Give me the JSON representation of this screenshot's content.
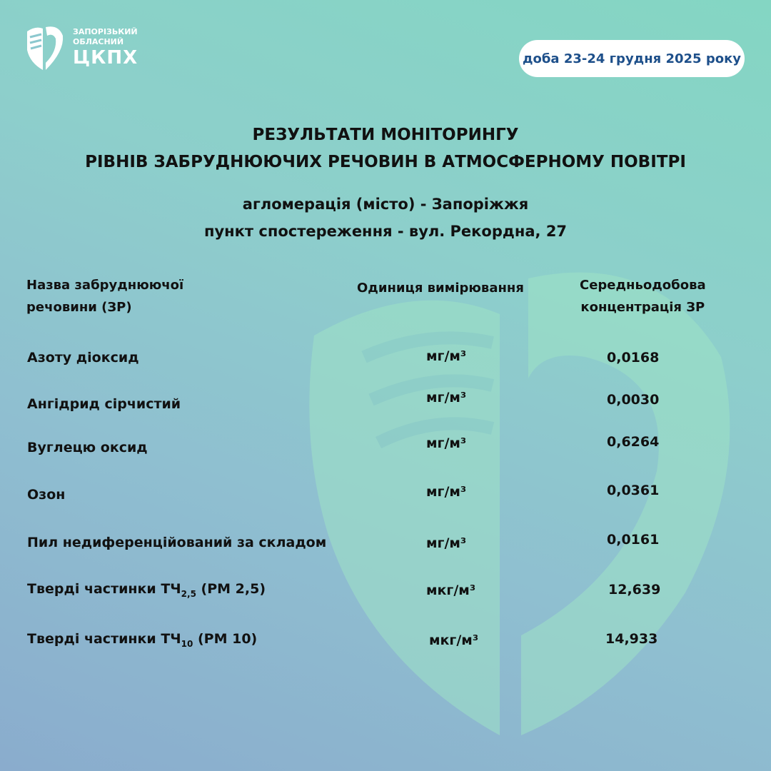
{
  "logo": {
    "line1": "ЗАПОРІЗЬКИЙ",
    "line2": "ОБЛАСНИЙ",
    "abbr": "ЦКПХ"
  },
  "date": "доба 23-24 грудня 2025 року",
  "title": {
    "line1": "РЕЗУЛЬТАТИ МОНІТОРИНГУ",
    "line2": "РІВНІВ ЗАБРУДНЮЮЧИХ РЕЧОВИН В АТМОСФЕРНОМУ ПОВІТРІ"
  },
  "subtitle": {
    "line1": "агломерація (місто) - Запоріжжя",
    "line2": "пункт спостереження - вул. Рекордна, 27"
  },
  "table": {
    "headers": {
      "name_1": "Назва забруднюючої",
      "name_2": "речовини (ЗР)",
      "unit": "Одиниця вимірювання",
      "conc_1": "Середньодобова",
      "conc_2": "концентрація ЗР"
    },
    "rows": [
      {
        "name": "Азоту діоксид",
        "unit": "мг/м³",
        "value": "0,0168"
      },
      {
        "name": "Ангідрид сірчистий",
        "unit": "мг/м³",
        "value": "0,0030"
      },
      {
        "name": "Вуглецю оксид",
        "unit": "мг/м³",
        "value": "0,6264"
      },
      {
        "name": "Озон",
        "unit": "мг/м³",
        "value": "0,0361"
      },
      {
        "name": "Пил недиференційований за складом",
        "unit": "мг/м³",
        "value": "0,0161"
      },
      {
        "name": "Тверді частинки ТЧ",
        "sub": "2,5",
        "suffix": " (РМ 2,5)",
        "unit": "мкг/м³",
        "value": "12,639"
      },
      {
        "name": "Тверді частинки ТЧ",
        "sub": "10",
        "suffix": " (РМ 10)",
        "unit": "мкг/м³",
        "value": "14,933"
      }
    ]
  }
}
